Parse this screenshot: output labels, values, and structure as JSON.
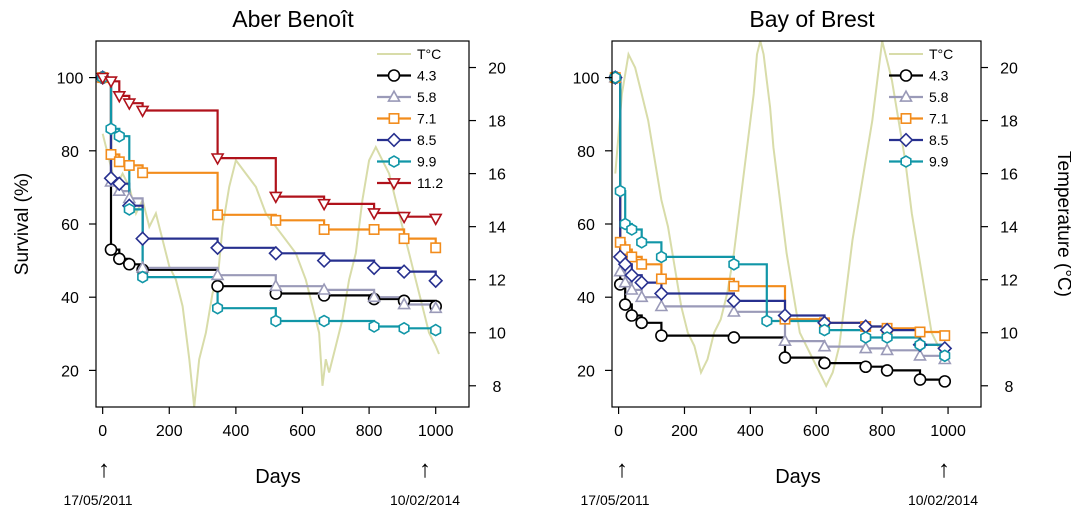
{
  "figure": {
    "ylabel_left": "Survival (%)",
    "ylabel_right": "Temperature (°C)",
    "date_start": "17/05/2011",
    "date_end": "10/02/2014",
    "arrow_glyph": "↑"
  },
  "colors": {
    "temp": "#d8dca9",
    "4.3": "#000000",
    "5.8": "#9a9ab8",
    "7.1": "#f28c1c",
    "8.5": "#27308f",
    "9.9": "#1196a7",
    "11.2": "#b0121b"
  },
  "chart_data": [
    {
      "type": "line",
      "title": "Aber Benoît",
      "xlabel": "Days",
      "ylabel": "Survival (%)",
      "y2label": "",
      "xlim": [
        -20,
        1100
      ],
      "ylim": [
        10,
        110
      ],
      "y2lim": [
        7.2,
        21
      ],
      "xticks": [
        0,
        200,
        400,
        600,
        800,
        1000
      ],
      "yticks": [
        20,
        40,
        60,
        80,
        100
      ],
      "y2ticks": [
        8,
        10,
        12,
        14,
        16,
        18,
        20
      ],
      "legend_title": "T°C",
      "legend_position": "top-right",
      "series": [
        {
          "name": "4.3",
          "marker": "circle",
          "points": [
            [
              0,
              100
            ],
            [
              25,
              53
            ],
            [
              50,
              50.5
            ],
            [
              80,
              49
            ],
            [
              120,
              47.5
            ],
            [
              345,
              43
            ],
            [
              520,
              41
            ],
            [
              665,
              40.5
            ],
            [
              815,
              39.5
            ],
            [
              905,
              39
            ],
            [
              1000,
              37.5
            ]
          ]
        },
        {
          "name": "5.8",
          "marker": "triangle",
          "points": [
            [
              0,
              100
            ],
            [
              25,
              71.5
            ],
            [
              50,
              69
            ],
            [
              80,
              67
            ],
            [
              120,
              48
            ],
            [
              345,
              46
            ],
            [
              520,
              43
            ],
            [
              665,
              42
            ],
            [
              815,
              40
            ],
            [
              905,
              38
            ],
            [
              1000,
              37
            ]
          ]
        },
        {
          "name": "7.1",
          "marker": "square",
          "points": [
            [
              0,
              100
            ],
            [
              25,
              79
            ],
            [
              50,
              77
            ],
            [
              80,
              76
            ],
            [
              120,
              74
            ],
            [
              345,
              62.5
            ],
            [
              520,
              61
            ],
            [
              665,
              58.5
            ],
            [
              815,
              58.5
            ],
            [
              905,
              56
            ],
            [
              1000,
              53.5
            ]
          ]
        },
        {
          "name": "8.5",
          "marker": "diamond",
          "points": [
            [
              0,
              100
            ],
            [
              25,
              72.5
            ],
            [
              50,
              71
            ],
            [
              80,
              65
            ],
            [
              120,
              56
            ],
            [
              345,
              53.5
            ],
            [
              520,
              52
            ],
            [
              665,
              50
            ],
            [
              815,
              48
            ],
            [
              905,
              47
            ],
            [
              1000,
              44.5
            ]
          ]
        },
        {
          "name": "9.9",
          "marker": "hexagon",
          "points": [
            [
              0,
              100
            ],
            [
              25,
              86
            ],
            [
              50,
              84
            ],
            [
              80,
              64
            ],
            [
              120,
              45.5
            ],
            [
              345,
              37
            ],
            [
              520,
              33.5
            ],
            [
              665,
              33.5
            ],
            [
              815,
              32
            ],
            [
              905,
              31.5
            ],
            [
              1000,
              31
            ]
          ]
        },
        {
          "name": "11.2",
          "marker": "triangle-down",
          "points": [
            [
              0,
              100
            ],
            [
              25,
              99
            ],
            [
              50,
              95
            ],
            [
              80,
              93
            ],
            [
              120,
              91
            ],
            [
              345,
              78
            ],
            [
              520,
              67.5
            ],
            [
              665,
              65.5
            ],
            [
              815,
              63
            ],
            [
              905,
              62
            ],
            [
              1000,
              61.5
            ]
          ]
        }
      ],
      "temperature": {
        "days": [
          0,
          20,
          40,
          60,
          80,
          100,
          120,
          140,
          160,
          180,
          200,
          220,
          240,
          260,
          275,
          290,
          310,
          330,
          345,
          360,
          380,
          400,
          430,
          460,
          490,
          520,
          550,
          580,
          610,
          630,
          650,
          660,
          670,
          680,
          700,
          720,
          740,
          760,
          780,
          800,
          820,
          840,
          860,
          880,
          900,
          920,
          940,
          960,
          980,
          1000,
          1010
        ],
        "values": [
          17.5,
          16.5,
          15.5,
          16,
          15.5,
          14.5,
          15,
          14,
          14.5,
          13.5,
          12.5,
          12,
          11,
          9,
          7.2,
          9,
          10,
          11.5,
          12,
          14,
          15.5,
          16.5,
          16,
          15.5,
          14.5,
          14,
          13.5,
          13,
          12,
          11,
          10,
          8,
          9,
          8.5,
          9.5,
          10.5,
          12,
          13,
          15,
          16.5,
          17,
          16.5,
          16,
          15,
          14,
          13,
          12,
          11,
          10,
          9.5,
          9.2
        ]
      }
    },
    {
      "type": "line",
      "title": "Bay of Brest",
      "xlabel": "Days",
      "ylabel": "",
      "y2label": "Temperature (°C)",
      "xlim": [
        -20,
        1100
      ],
      "ylim": [
        10,
        110
      ],
      "y2lim": [
        7.2,
        21
      ],
      "xticks": [
        0,
        200,
        400,
        600,
        800,
        1000
      ],
      "yticks": [
        20,
        40,
        60,
        80,
        100
      ],
      "y2ticks": [
        8,
        10,
        12,
        14,
        16,
        18,
        20
      ],
      "legend_title": "T°C",
      "legend_position": "top-right",
      "series": [
        {
          "name": "4.3",
          "marker": "circle",
          "points": [
            [
              -10,
              100
            ],
            [
              5,
              43.5
            ],
            [
              20,
              38
            ],
            [
              40,
              35
            ],
            [
              70,
              33
            ],
            [
              130,
              29.5
            ],
            [
              350,
              29
            ],
            [
              505,
              23.5
            ],
            [
              625,
              22
            ],
            [
              750,
              21
            ],
            [
              815,
              20
            ],
            [
              915,
              17.5
            ],
            [
              990,
              17
            ]
          ]
        },
        {
          "name": "5.8",
          "marker": "triangle",
          "points": [
            [
              -10,
              100
            ],
            [
              5,
              47
            ],
            [
              20,
              44
            ],
            [
              40,
              42
            ],
            [
              70,
              40
            ],
            [
              130,
              37.5
            ],
            [
              350,
              36
            ],
            [
              505,
              28
            ],
            [
              625,
              26.5
            ],
            [
              750,
              26
            ],
            [
              815,
              25.5
            ],
            [
              915,
              24
            ],
            [
              990,
              23
            ]
          ]
        },
        {
          "name": "7.1",
          "marker": "square",
          "points": [
            [
              -10,
              100
            ],
            [
              5,
              55
            ],
            [
              20,
              53
            ],
            [
              40,
              51
            ],
            [
              70,
              49
            ],
            [
              130,
              45
            ],
            [
              350,
              43
            ],
            [
              505,
              34
            ],
            [
              625,
              33
            ],
            [
              750,
              32
            ],
            [
              815,
              31.5
            ],
            [
              915,
              30.5
            ],
            [
              990,
              29.5
            ]
          ]
        },
        {
          "name": "8.5",
          "marker": "diamond",
          "points": [
            [
              -10,
              100
            ],
            [
              5,
              51
            ],
            [
              20,
              49
            ],
            [
              40,
              46
            ],
            [
              70,
              44
            ],
            [
              130,
              41
            ],
            [
              350,
              39
            ],
            [
              505,
              35
            ],
            [
              625,
              33
            ],
            [
              750,
              32
            ],
            [
              815,
              31
            ],
            [
              915,
              27
            ],
            [
              990,
              26
            ]
          ]
        },
        {
          "name": "9.9",
          "marker": "hexagon",
          "points": [
            [
              -10,
              100
            ],
            [
              5,
              69
            ],
            [
              20,
              60
            ],
            [
              40,
              58.5
            ],
            [
              70,
              55
            ],
            [
              130,
              51
            ],
            [
              350,
              49
            ],
            [
              450,
              33.5
            ],
            [
              625,
              31
            ],
            [
              750,
              29
            ],
            [
              815,
              29
            ],
            [
              915,
              27
            ],
            [
              990,
              24
            ]
          ]
        }
      ],
      "temperature": {
        "days": [
          -10,
          10,
          30,
          50,
          70,
          90,
          110,
          130,
          150,
          170,
          190,
          210,
          230,
          250,
          270,
          290,
          310,
          330,
          350,
          370,
          390,
          410,
          420,
          430,
          440,
          450,
          460,
          470,
          490,
          510,
          530,
          550,
          570,
          590,
          610,
          630,
          650,
          670,
          690,
          710,
          730,
          750,
          770,
          790,
          800,
          810,
          820,
          830,
          850,
          870,
          890,
          910,
          930,
          950,
          970,
          980
        ],
        "values": [
          16,
          19,
          20.5,
          20,
          19,
          18,
          16.5,
          15,
          14,
          12.5,
          11,
          10,
          9.5,
          8.5,
          9,
          10,
          10.5,
          11.5,
          13,
          15,
          17,
          19,
          20.5,
          21,
          20.5,
          19.5,
          18.5,
          17,
          15,
          13,
          11.5,
          10,
          9.5,
          9,
          8.5,
          8,
          8.5,
          9.5,
          11.5,
          13.5,
          15,
          16.5,
          18,
          20,
          21,
          20.5,
          20,
          19.5,
          18,
          16.5,
          14.5,
          13,
          11.5,
          10,
          9.5,
          9.2
        ]
      }
    }
  ]
}
